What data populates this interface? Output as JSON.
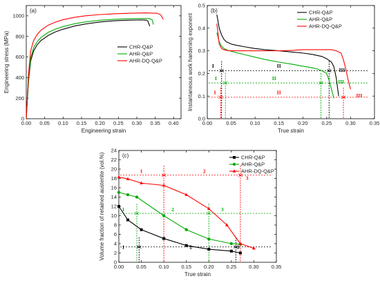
{
  "chart_data": [
    {
      "panel": "(a)",
      "type": "line",
      "xlabel": "Engineering strain",
      "ylabel": "Engineering stress (MPa)",
      "xlim": [
        0.0,
        0.42
      ],
      "ylim": [
        0,
        1100
      ],
      "xticks": [
        "0.00",
        "0.05",
        "0.10",
        "0.15",
        "0.20",
        "0.25",
        "0.30",
        "0.35",
        "0.40"
      ],
      "yticks": [
        "0",
        "200",
        "400",
        "600",
        "800",
        "1000"
      ],
      "legend_position": "center-right",
      "series": [
        {
          "name": "CHR-Q&P",
          "color": "#000000",
          "x": [
            0,
            0.006,
            0.012,
            0.02,
            0.03,
            0.04,
            0.06,
            0.08,
            0.1,
            0.13,
            0.16,
            0.2,
            0.24,
            0.28,
            0.31,
            0.325,
            0.33,
            0.335
          ],
          "y": [
            0,
            360,
            560,
            660,
            720,
            760,
            810,
            845,
            870,
            900,
            920,
            940,
            952,
            958,
            960,
            958,
            950,
            900
          ]
        },
        {
          "name": "AHR-Q&P",
          "color": "#00aa00",
          "x": [
            0,
            0.006,
            0.012,
            0.02,
            0.03,
            0.04,
            0.06,
            0.08,
            0.1,
            0.13,
            0.16,
            0.2,
            0.24,
            0.28,
            0.32,
            0.335,
            0.342,
            0.345
          ],
          "y": [
            0,
            380,
            590,
            690,
            750,
            790,
            840,
            872,
            895,
            922,
            940,
            957,
            966,
            972,
            974,
            972,
            960,
            915
          ]
        },
        {
          "name": "AHR-DQ-Q&P",
          "color": "#ff0000",
          "x": [
            0,
            0.006,
            0.012,
            0.02,
            0.03,
            0.04,
            0.06,
            0.08,
            0.1,
            0.13,
            0.16,
            0.2,
            0.24,
            0.28,
            0.32,
            0.355,
            0.365,
            0.372
          ],
          "y": [
            0,
            430,
            660,
            760,
            820,
            860,
            910,
            940,
            962,
            985,
            1000,
            1012,
            1020,
            1025,
            1028,
            1025,
            1010,
            965
          ]
        }
      ]
    },
    {
      "panel": "(b)",
      "type": "line",
      "xlabel": "True strain",
      "ylabel": "Instantaneous work hardening exponent",
      "xlim": [
        0.0,
        0.35
      ],
      "ylim": [
        0.0,
        0.5
      ],
      "xticks": [
        "0.00",
        "0.05",
        "0.10",
        "0.15",
        "0.20",
        "0.25",
        "0.30",
        "0.35"
      ],
      "yticks": [
        "0.0",
        "0.1",
        "0.2",
        "0.3",
        "0.4",
        "0.5"
      ],
      "legend_position": "top-right",
      "series": [
        {
          "name": "CHR-Q&P",
          "color": "#000000",
          "x": [
            0.02,
            0.025,
            0.03,
            0.035,
            0.04,
            0.05,
            0.06,
            0.08,
            0.1,
            0.12,
            0.15,
            0.18,
            0.2,
            0.22,
            0.24,
            0.25,
            0.26,
            0.265,
            0.27,
            0.275
          ],
          "y": [
            0.46,
            0.4,
            0.37,
            0.35,
            0.34,
            0.33,
            0.325,
            0.317,
            0.31,
            0.305,
            0.3,
            0.294,
            0.29,
            0.284,
            0.275,
            0.265,
            0.25,
            0.23,
            0.18,
            0.1
          ]
        },
        {
          "name": "AHR-Q&P",
          "color": "#00aa00",
          "x": [
            0.02,
            0.025,
            0.03,
            0.035,
            0.04,
            0.05,
            0.06,
            0.08,
            0.1,
            0.12,
            0.15,
            0.18,
            0.2,
            0.22,
            0.23,
            0.24,
            0.25,
            0.255,
            0.26,
            0.265
          ],
          "y": [
            0.38,
            0.34,
            0.32,
            0.31,
            0.305,
            0.298,
            0.292,
            0.282,
            0.272,
            0.262,
            0.25,
            0.24,
            0.232,
            0.225,
            0.22,
            0.212,
            0.2,
            0.17,
            0.13,
            0.09
          ]
        },
        {
          "name": "AHR-DQ-Q&P",
          "color": "#ff0000",
          "x": [
            0.02,
            0.025,
            0.03,
            0.035,
            0.04,
            0.05,
            0.06,
            0.08,
            0.1,
            0.12,
            0.15,
            0.18,
            0.2,
            0.22,
            0.24,
            0.26,
            0.27,
            0.28,
            0.285,
            0.29,
            0.295,
            0.3
          ],
          "y": [
            0.42,
            0.33,
            0.31,
            0.305,
            0.302,
            0.3,
            0.3,
            0.3,
            0.3,
            0.3,
            0.3,
            0.302,
            0.305,
            0.305,
            0.305,
            0.305,
            0.3,
            0.29,
            0.26,
            0.22,
            0.17,
            0.13
          ]
        }
      ],
      "annotations": [
        {
          "text": "I",
          "color": "#000000",
          "x": 0.012,
          "y": 0.225
        },
        {
          "text": "II",
          "color": "#000000",
          "x": 0.15,
          "y": 0.225
        },
        {
          "text": "III",
          "color": "#000000",
          "x": 0.282,
          "y": 0.208
        },
        {
          "text": "I",
          "color": "#00aa00",
          "x": 0.018,
          "y": 0.17
        },
        {
          "text": "II",
          "color": "#00aa00",
          "x": 0.14,
          "y": 0.17
        },
        {
          "text": "III",
          "color": "#00aa00",
          "x": 0.28,
          "y": 0.155
        },
        {
          "text": "I",
          "color": "#ff0000",
          "x": 0.016,
          "y": 0.108
        },
        {
          "text": "II",
          "color": "#ff0000",
          "x": 0.15,
          "y": 0.108
        },
        {
          "text": "III",
          "color": "#ff0000",
          "x": 0.318,
          "y": 0.095
        }
      ],
      "stage_markers": [
        {
          "color": "#000000",
          "y": 0.212,
          "boundaries": [
            0.03,
            0.255
          ]
        },
        {
          "color": "#00aa00",
          "y": 0.158,
          "boundaries": [
            0.038,
            0.238
          ]
        },
        {
          "color": "#ff0000",
          "y": 0.095,
          "boundaries": [
            0.028,
            0.285
          ]
        }
      ]
    },
    {
      "panel": "(c)",
      "type": "line",
      "xlabel": "True strain",
      "ylabel": "Volume fraction of retained austenite (vol.%)",
      "xlim": [
        0.0,
        0.35
      ],
      "ylim": [
        0,
        24
      ],
      "xticks": [
        "0.00",
        "0.05",
        "0.10",
        "0.15",
        "0.20",
        "0.25",
        "0.30",
        "0.35"
      ],
      "yticks": [
        "0",
        "2",
        "4",
        "6",
        "8",
        "10",
        "12",
        "14",
        "16",
        "18",
        "20",
        "22",
        "24"
      ],
      "legend_position": "top-right",
      "series": [
        {
          "name": "CHR-Q&P",
          "color": "#000000",
          "marker": "square",
          "x": [
            0.0,
            0.02,
            0.05,
            0.1,
            0.15,
            0.2,
            0.25,
            0.27
          ],
          "y": [
            12.0,
            9.1,
            7.0,
            5.1,
            3.6,
            2.8,
            2.4,
            2.0
          ]
        },
        {
          "name": "AHR-Q&P",
          "color": "#00aa00",
          "marker": "circle",
          "x": [
            0.0,
            0.02,
            0.04,
            0.1,
            0.15,
            0.2,
            0.25,
            0.27
          ],
          "y": [
            15.0,
            14.5,
            14.0,
            10.0,
            7.0,
            5.0,
            4.0,
            3.9
          ]
        },
        {
          "name": "AHR-DQ-Q&P",
          "color": "#ff0000",
          "marker": "triangle",
          "x": [
            0.0,
            0.02,
            0.05,
            0.1,
            0.15,
            0.2,
            0.24,
            0.27,
            0.3
          ],
          "y": [
            18.3,
            17.9,
            17.0,
            16.5,
            14.5,
            11.5,
            8.0,
            4.0,
            3.0
          ]
        }
      ],
      "annotations": [
        {
          "text": "1",
          "color": "#000000",
          "x": 0.01,
          "y": 2.9
        },
        {
          "text": "2",
          "color": "#000000",
          "x": 0.16,
          "y": 2.9
        },
        {
          "text": "3",
          "color": "#000000",
          "x": 0.265,
          "y": 2.9
        },
        {
          "text": "1",
          "color": "#00aa00",
          "x": 0.01,
          "y": 11.0
        },
        {
          "text": "2",
          "color": "#00aa00",
          "x": 0.12,
          "y": 11.0
        },
        {
          "text": "3",
          "color": "#00aa00",
          "x": 0.23,
          "y": 11.0
        },
        {
          "text": "1",
          "color": "#ff0000",
          "x": 0.05,
          "y": 19.2
        },
        {
          "text": "2",
          "color": "#ff0000",
          "x": 0.19,
          "y": 19.2
        },
        {
          "text": "3",
          "color": "#ff0000",
          "x": 0.285,
          "y": 17.7
        }
      ],
      "stage_markers": [
        {
          "color": "#000000",
          "y": 3.3,
          "boundaries": [
            0.045,
            0.26
          ]
        },
        {
          "color": "#00aa00",
          "y": 10.5,
          "boundaries": [
            0.04,
            0.2
          ]
        },
        {
          "color": "#ff0000",
          "y": 18.7,
          "boundaries": [
            0.1,
            0.27
          ]
        }
      ]
    }
  ]
}
